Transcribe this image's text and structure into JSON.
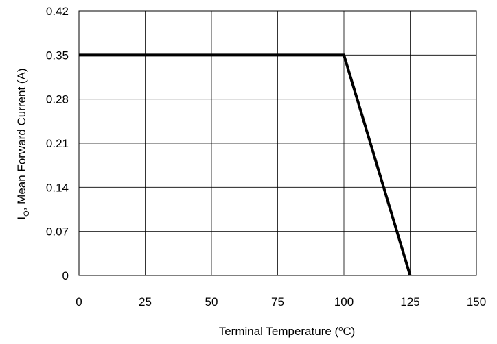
{
  "chart_data": {
    "type": "line",
    "xlabel_main": "Terminal Temperature (",
    "xlabel_sup": "o",
    "xlabel_end": "C)",
    "ylabel_main": "I",
    "ylabel_sub": "O",
    "ylabel_end": ", Mean Forward Current (A)",
    "xlim": [
      0,
      150
    ],
    "ylim": [
      0,
      0.42
    ],
    "xticks": [
      0,
      25,
      50,
      75,
      100,
      125,
      150
    ],
    "yticks": [
      0,
      0.07,
      0.14,
      0.21,
      0.28,
      0.35,
      0.42
    ],
    "yticklabels": [
      "0",
      "0.07",
      "0.14",
      "0.21",
      "0.28",
      "0.35",
      "0.42"
    ],
    "grid": true,
    "series": [
      {
        "x": [
          0,
          100,
          125
        ],
        "y": [
          0.35,
          0.35,
          0
        ]
      }
    ]
  }
}
